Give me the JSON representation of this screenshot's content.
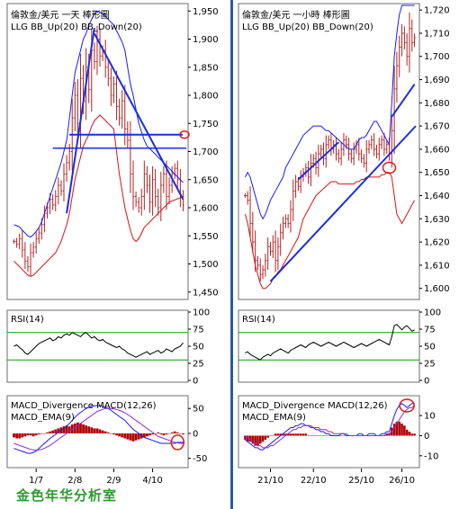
{
  "footer": {
    "text": "金色年华分析室"
  },
  "colors": {
    "frame": "#6e6e6e",
    "divider": "#2b5aa8",
    "price": "#b22222",
    "bb_up": "#1a1aff",
    "bb_down": "#dd1111",
    "trend": "#1a2ee0",
    "rsi": "#000000",
    "rsi_bands": "#119911",
    "macd_line": "#1a1aff",
    "macd_signal": "#8a2be2",
    "histogram": "#b00000",
    "marker": "#ee1111",
    "footer_text": "#2e9a2e"
  },
  "chart_data": [
    {
      "id": "daily",
      "type": "candlestick",
      "title": "倫敦金/美元 一天 棒形圖",
      "legend": "LLG  BB_Up(20)  BB_Down(20)",
      "ylim": [
        1440,
        1960
      ],
      "y_ticks": [
        "1,450",
        "1,500",
        "1,550",
        "1,600",
        "1,650",
        "1,700",
        "1,750",
        "1,800",
        "1,850",
        "1,900",
        "1,950"
      ],
      "x_ticks": [
        "1/7",
        "2/8",
        "2/9",
        "4/10"
      ],
      "x_tick_index": [
        8,
        22,
        36,
        50
      ],
      "bars": 62,
      "close": [
        1540,
        1535,
        1545,
        1525,
        1505,
        1495,
        1520,
        1530,
        1545,
        1555,
        1570,
        1590,
        1600,
        1615,
        1605,
        1620,
        1640,
        1630,
        1660,
        1680,
        1700,
        1760,
        1800,
        1750,
        1830,
        1790,
        1850,
        1810,
        1880,
        1860,
        1900,
        1870,
        1880,
        1850,
        1830,
        1800,
        1820,
        1780,
        1760,
        1790,
        1740,
        1720,
        1660,
        1620,
        1610,
        1600,
        1620,
        1660,
        1640,
        1610,
        1650,
        1620,
        1600,
        1640,
        1660,
        1620,
        1640,
        1660,
        1670,
        1650,
        1620,
        1605
      ],
      "bb_up": [
        1570,
        1568,
        1566,
        1560,
        1555,
        1550,
        1548,
        1552,
        1558,
        1565,
        1575,
        1590,
        1605,
        1620,
        1635,
        1650,
        1665,
        1680,
        1700,
        1720,
        1760,
        1800,
        1840,
        1860,
        1880,
        1900,
        1910,
        1925,
        1935,
        1945,
        1950,
        1948,
        1945,
        1940,
        1935,
        1930,
        1925,
        1915,
        1905,
        1895,
        1880,
        1850,
        1820,
        1800,
        1775,
        1750,
        1735,
        1720,
        1710,
        1705,
        1700,
        1695,
        1690,
        1685,
        1680,
        1675,
        1670,
        1665,
        1660,
        1655,
        1650,
        1645
      ],
      "bb_down": [
        1505,
        1500,
        1495,
        1490,
        1485,
        1480,
        1478,
        1480,
        1485,
        1490,
        1495,
        1500,
        1505,
        1510,
        1515,
        1520,
        1530,
        1540,
        1555,
        1570,
        1590,
        1620,
        1650,
        1670,
        1690,
        1710,
        1720,
        1730,
        1745,
        1755,
        1760,
        1765,
        1760,
        1755,
        1750,
        1745,
        1740,
        1700,
        1660,
        1630,
        1600,
        1580,
        1560,
        1545,
        1540,
        1545,
        1555,
        1565,
        1570,
        1575,
        1580,
        1585,
        1590,
        1595,
        1600,
        1605,
        1610,
        1612,
        1614,
        1616,
        1618,
        1620
      ],
      "annotations": [
        "ascending-trendline",
        "descending-trendline",
        "horizontal-support-1730",
        "horizontal-support-1705",
        "circle-marker-1730"
      ]
    },
    {
      "id": "hourly",
      "type": "candlestick",
      "title": "倫敦金/美元 一小時 棒形圖",
      "legend": "LLG  BB_Up(20)  BB_Down(20)",
      "ylim": [
        1596,
        1722
      ],
      "y_ticks": [
        "1,600",
        "1,610",
        "1,620",
        "1,630",
        "1,640",
        "1,650",
        "1,660",
        "1,670",
        "1,680",
        "1,690",
        "1,700",
        "1,710",
        "1,720"
      ],
      "x_ticks": [
        "21/10",
        "22/10",
        "25/10",
        "26/10"
      ],
      "x_tick_index": [
        10,
        27,
        46,
        62
      ],
      "bars": 68,
      "close": [
        1640,
        1638,
        1628,
        1620,
        1612,
        1610,
        1606,
        1608,
        1612,
        1618,
        1616,
        1620,
        1612,
        1618,
        1624,
        1628,
        1630,
        1628,
        1634,
        1642,
        1646,
        1644,
        1648,
        1650,
        1652,
        1648,
        1654,
        1656,
        1652,
        1658,
        1660,
        1656,
        1662,
        1664,
        1660,
        1662,
        1658,
        1656,
        1660,
        1664,
        1662,
        1658,
        1656,
        1660,
        1662,
        1658,
        1656,
        1654,
        1660,
        1662,
        1664,
        1660,
        1658,
        1662,
        1664,
        1660,
        1662,
        1658,
        1668,
        1686,
        1696,
        1704,
        1710,
        1706,
        1700,
        1712,
        1706,
        1708
      ],
      "bb_up": [
        1648,
        1650,
        1648,
        1644,
        1640,
        1636,
        1632,
        1630,
        1632,
        1635,
        1638,
        1640,
        1642,
        1644,
        1646,
        1648,
        1652,
        1654,
        1656,
        1658,
        1660,
        1662,
        1664,
        1666,
        1667,
        1668,
        1669,
        1670,
        1670,
        1670,
        1670,
        1669,
        1668,
        1668,
        1667,
        1666,
        1665,
        1664,
        1663,
        1662,
        1661,
        1660,
        1660,
        1660,
        1662,
        1664,
        1665,
        1665,
        1666,
        1668,
        1670,
        1672,
        1672,
        1670,
        1668,
        1666,
        1664,
        1662,
        1680,
        1700,
        1710,
        1718,
        1722,
        1722,
        1722,
        1722,
        1722,
        1722
      ],
      "bb_down": [
        1632,
        1628,
        1622,
        1616,
        1610,
        1606,
        1602,
        1600,
        1600,
        1601,
        1602,
        1604,
        1605,
        1607,
        1608,
        1610,
        1612,
        1614,
        1616,
        1618,
        1620,
        1622,
        1626,
        1630,
        1632,
        1634,
        1636,
        1638,
        1640,
        1641,
        1642,
        1643,
        1644,
        1645,
        1646,
        1646,
        1646,
        1645,
        1645,
        1645,
        1645,
        1645,
        1645,
        1645,
        1646,
        1646,
        1647,
        1647,
        1648,
        1648,
        1648,
        1648,
        1648,
        1648,
        1649,
        1649,
        1650,
        1650,
        1648,
        1640,
        1632,
        1630,
        1628,
        1630,
        1632,
        1634,
        1636,
        1638
      ],
      "annotations": [
        "channel-lower-trendline",
        "channel-upper-trendline",
        "circle-marker-1652"
      ]
    }
  ],
  "rsi": {
    "label": "RSI(14)",
    "ylim": [
      0,
      100
    ],
    "ticks": [
      "0",
      "25",
      "50",
      "75",
      "100"
    ],
    "levels": [
      70,
      30
    ],
    "daily": [
      50,
      52,
      48,
      45,
      40,
      38,
      42,
      46,
      50,
      54,
      56,
      58,
      60,
      62,
      58,
      60,
      64,
      62,
      66,
      68,
      66,
      70,
      68,
      66,
      64,
      68,
      70,
      66,
      62,
      64,
      60,
      58,
      60,
      56,
      54,
      52,
      50,
      48,
      50,
      46,
      44,
      40,
      38,
      36,
      34,
      36,
      38,
      40,
      42,
      38,
      40,
      42,
      44,
      40,
      42,
      46,
      44,
      42,
      46,
      48,
      50,
      55
    ],
    "hourly": [
      40,
      42,
      38,
      36,
      34,
      32,
      30,
      34,
      36,
      38,
      36,
      40,
      42,
      44,
      46,
      44,
      42,
      40,
      44,
      46,
      48,
      50,
      52,
      50,
      48,
      52,
      54,
      56,
      54,
      52,
      50,
      52,
      54,
      56,
      54,
      52,
      50,
      52,
      54,
      56,
      54,
      52,
      50,
      48,
      50,
      52,
      54,
      52,
      50,
      52,
      54,
      56,
      58,
      60,
      58,
      56,
      54,
      52,
      64,
      80,
      82,
      78,
      74,
      78,
      80,
      76,
      72,
      74
    ]
  },
  "macd": {
    "label1": "MACD_Divergence  MACD(12,26)",
    "label2": "MACD_EMA(9)",
    "daily_ylim": [
      -65,
      72
    ],
    "daily_ticks": [
      "-50",
      "0",
      "50"
    ],
    "hourly_ylim": [
      -15,
      19
    ],
    "hourly_ticks": [
      "-10",
      "0",
      "10"
    ],
    "daily_macd": [
      -30,
      -32,
      -34,
      -36,
      -38,
      -40,
      -40,
      -38,
      -35,
      -30,
      -25,
      -20,
      -15,
      -10,
      -6,
      -2,
      2,
      6,
      10,
      15,
      20,
      26,
      32,
      38,
      42,
      46,
      50,
      52,
      54,
      55,
      56,
      55,
      54,
      52,
      50,
      46,
      42,
      38,
      34,
      30,
      26,
      20,
      14,
      8,
      4,
      0,
      -4,
      -8,
      -10,
      -12,
      -14,
      -16,
      -18,
      -20,
      -20,
      -20,
      -20,
      -20,
      -20,
      -18,
      -18,
      -18
    ],
    "daily_signal": [
      -20,
      -22,
      -24,
      -26,
      -28,
      -30,
      -32,
      -33,
      -34,
      -33,
      -32,
      -30,
      -27,
      -24,
      -20,
      -16,
      -12,
      -8,
      -4,
      0,
      4,
      8,
      12,
      16,
      20,
      24,
      28,
      32,
      36,
      40,
      44,
      46,
      48,
      50,
      50,
      50,
      49,
      48,
      46,
      44,
      41,
      38,
      34,
      30,
      26,
      22,
      18,
      14,
      10,
      6,
      2,
      -2,
      -6,
      -8,
      -10,
      -12,
      -14,
      -16,
      -18,
      -19,
      -20,
      -20
    ],
    "daily_hist": [
      -8,
      -10,
      -10,
      -8,
      -6,
      -4,
      -4,
      -6,
      -4,
      -2,
      -1,
      0,
      2,
      4,
      6,
      8,
      10,
      12,
      14,
      16,
      14,
      18,
      20,
      22,
      20,
      18,
      16,
      14,
      12,
      10,
      10,
      8,
      6,
      4,
      2,
      0,
      -2,
      -4,
      -6,
      -8,
      -10,
      -12,
      -14,
      -16,
      -14,
      -12,
      -10,
      -8,
      -6,
      -4,
      -2,
      0,
      2,
      -2,
      -4,
      -2,
      0,
      2,
      4,
      2,
      0,
      -2
    ],
    "hourly_macd": [
      -2,
      -3,
      -4,
      -5,
      -6,
      -6,
      -7,
      -7,
      -6,
      -5,
      -4,
      -3,
      -2,
      -1,
      0,
      1,
      2,
      3,
      4,
      4,
      5,
      5,
      6,
      6,
      5,
      5,
      4,
      4,
      3,
      3,
      2,
      2,
      1,
      1,
      0,
      0,
      0,
      0,
      1,
      1,
      0,
      0,
      0,
      0,
      0,
      1,
      1,
      0,
      0,
      1,
      1,
      1,
      0,
      0,
      1,
      1,
      2,
      2,
      6,
      10,
      13,
      15,
      16,
      15,
      14,
      15,
      16,
      16
    ],
    "hourly_signal": [
      0,
      -1,
      -2,
      -3,
      -4,
      -5,
      -5,
      -6,
      -6,
      -6,
      -5,
      -5,
      -4,
      -3,
      -2,
      -1,
      0,
      1,
      2,
      3,
      3,
      4,
      4,
      5,
      5,
      5,
      5,
      4,
      4,
      4,
      3,
      3,
      3,
      2,
      2,
      1,
      1,
      1,
      1,
      1,
      1,
      0,
      0,
      0,
      0,
      0,
      0,
      0,
      0,
      0,
      0,
      0,
      0,
      0,
      0,
      0,
      1,
      1,
      2,
      4,
      6,
      8,
      10,
      12,
      13,
      14,
      14,
      15
    ],
    "hourly_hist": [
      -2,
      -3,
      -3,
      -4,
      -5,
      -5,
      -4,
      -3,
      -2,
      -1,
      0,
      0,
      1,
      1,
      1,
      1,
      1,
      1,
      1,
      1,
      1,
      1,
      1,
      1,
      1,
      0,
      0,
      0,
      0,
      0,
      0,
      0,
      0,
      0,
      0,
      0,
      0,
      0,
      0,
      0,
      0,
      0,
      0,
      0,
      0,
      0,
      0,
      0,
      0,
      0,
      0,
      0,
      0,
      0,
      0,
      0,
      1,
      1,
      4,
      6,
      7,
      7,
      6,
      5,
      3,
      2,
      1,
      1
    ]
  }
}
